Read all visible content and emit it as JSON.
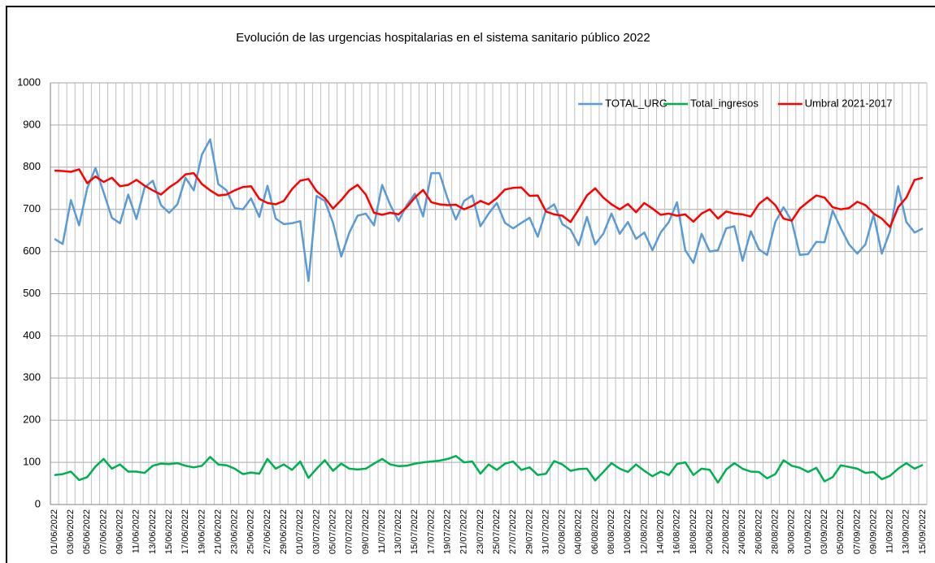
{
  "chart_data": {
    "type": "line",
    "title": "Evolución de las urgencias hospitalarias en el sistema sanitario público 2022",
    "categories": [
      "01/06/2022",
      null,
      "03/06/2022",
      null,
      "05/06/2022",
      null,
      "07/06/2022",
      null,
      "09/06/2022",
      null,
      "11/06/2022",
      null,
      "13/06/2022",
      null,
      "15/06/2022",
      null,
      "17/06/2022",
      null,
      "19/06/2022",
      null,
      "21/06/2022",
      null,
      "23/06/2022",
      null,
      "25/06/2022",
      null,
      "27/06/2022",
      null,
      "29/06/2022",
      null,
      "01/07/2022",
      null,
      "03/07/2022",
      null,
      "05/07/2022",
      null,
      "07/07/2022",
      null,
      "09/07/2022",
      null,
      "11/07/2022",
      null,
      "13/07/2022",
      null,
      "15/07/2022",
      null,
      "17/07/2022",
      null,
      "19/07/2022",
      null,
      "21/07/2022",
      null,
      "23/07/2022",
      null,
      "25/07/2022",
      null,
      "27/07/2022",
      null,
      "29/07/2022",
      null,
      "31/07/2022",
      null,
      "02/08/2022",
      null,
      "04/08/2022",
      null,
      "06/08/2022",
      null,
      "08/08/2022",
      null,
      "10/08/2022",
      null,
      "12/08/2022",
      null,
      "14/08/2022",
      null,
      "16/08/2022",
      null,
      "18/08/2022",
      null,
      "20/08/2022",
      null,
      "22/08/2022",
      null,
      "24/08/2022",
      null,
      "26/08/2022",
      null,
      "28/08/2022",
      null,
      "30/08/2022",
      null,
      "01/09/2022",
      null,
      "03/09/2022",
      null,
      "05/09/2022",
      null,
      "07/09/2022",
      null,
      "09/09/2022",
      null,
      "11/09/2022",
      null,
      "13/09/2022",
      null,
      "15/09/2022"
    ],
    "series": [
      {
        "name": "TOTAL_URG",
        "color": "#5b9bd5",
        "values": [
          630,
          618,
          722,
          662,
          750,
          798,
          740,
          680,
          667,
          735,
          677,
          752,
          768,
          710,
          692,
          712,
          775,
          745,
          830,
          866,
          760,
          745,
          703,
          700,
          726,
          682,
          756,
          678,
          665,
          667,
          672,
          530,
          732,
          720,
          668,
          588,
          645,
          685,
          690,
          662,
          758,
          710,
          672,
          710,
          737,
          683,
          786,
          786,
          725,
          676,
          720,
          733,
          660,
          690,
          715,
          668,
          655,
          668,
          680,
          635,
          698,
          712,
          665,
          652,
          615,
          682,
          617,
          642,
          690,
          642,
          670,
          630,
          645,
          603,
          645,
          670,
          717,
          603,
          573,
          642,
          600,
          603,
          655,
          660,
          578,
          648,
          605,
          592,
          670,
          705,
          672,
          592,
          594,
          623,
          622,
          697,
          655,
          617,
          595,
          617,
          687,
          595,
          648,
          755,
          670,
          645,
          655
        ]
      },
      {
        "name": "Total_ingresos",
        "color": "#00b050",
        "values": [
          70,
          72,
          78,
          58,
          65,
          90,
          108,
          85,
          95,
          78,
          78,
          75,
          92,
          97,
          96,
          98,
          92,
          88,
          92,
          113,
          95,
          93,
          85,
          72,
          76,
          73,
          108,
          85,
          95,
          82,
          102,
          63,
          85,
          105,
          80,
          97,
          85,
          83,
          85,
          97,
          108,
          95,
          91,
          92,
          97,
          100,
          102,
          104,
          108,
          115,
          100,
          102,
          73,
          95,
          82,
          97,
          102,
          82,
          88,
          70,
          73,
          103,
          95,
          80,
          84,
          85,
          57,
          77,
          98,
          85,
          77,
          95,
          80,
          67,
          78,
          70,
          96,
          100,
          70,
          85,
          82,
          52,
          83,
          98,
          85,
          78,
          77,
          62,
          72,
          105,
          92,
          87,
          77,
          87,
          55,
          65,
          93,
          89,
          85,
          75,
          77,
          60,
          68,
          85,
          98,
          85,
          94
        ]
      },
      {
        "name": "Umbral 2021-2017",
        "color": "#ff0000",
        "values": [
          792,
          791,
          789,
          795,
          762,
          778,
          765,
          775,
          755,
          758,
          770,
          756,
          745,
          735,
          752,
          765,
          783,
          786,
          760,
          745,
          733,
          735,
          745,
          753,
          755,
          725,
          715,
          712,
          720,
          748,
          768,
          772,
          743,
          727,
          702,
          722,
          745,
          758,
          735,
          692,
          687,
          692,
          688,
          705,
          728,
          746,
          717,
          712,
          710,
          711,
          700,
          708,
          720,
          712,
          727,
          747,
          751,
          752,
          732,
          733,
          695,
          688,
          685,
          670,
          700,
          733,
          750,
          728,
          712,
          700,
          713,
          693,
          715,
          702,
          687,
          690,
          685,
          688,
          671,
          690,
          700,
          678,
          695,
          690,
          688,
          683,
          713,
          728,
          710,
          678,
          673,
          702,
          718,
          733,
          728,
          705,
          700,
          703,
          718,
          710,
          690,
          678,
          658,
          705,
          728,
          770,
          775
        ]
      }
    ],
    "ylim": [
      0,
      1000
    ],
    "yticks": [
      0,
      100,
      200,
      300,
      400,
      500,
      600,
      700,
      800,
      900,
      1000
    ],
    "grid": true,
    "legend": "upper right"
  }
}
